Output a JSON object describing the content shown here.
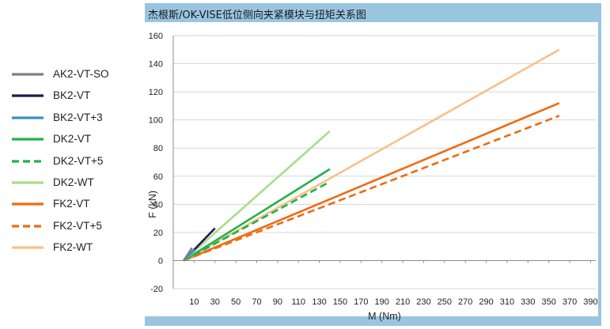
{
  "chart_data": {
    "type": "line",
    "title": "杰根斯/OK-VISE低位侧向夹紧模块与扭矩关系图",
    "xlabel": "M (Nm)",
    "ylabel": "F (kN)",
    "xlim": [
      -10,
      395
    ],
    "ylim": [
      -20,
      160
    ],
    "x_ticks": [
      10,
      30,
      50,
      70,
      90,
      110,
      130,
      150,
      170,
      190,
      210,
      230,
      250,
      270,
      290,
      310,
      330,
      350,
      370,
      390
    ],
    "y_ticks": [
      -20,
      0,
      20,
      40,
      60,
      80,
      100,
      120,
      140,
      160
    ],
    "grid": "horizontal",
    "legend_position": "left",
    "series": [
      {
        "name": "AK2-VT-SO",
        "color": "#7f7f7f",
        "dash": "solid",
        "points": [
          [
            0,
            0
          ],
          [
            8,
            9
          ]
        ]
      },
      {
        "name": "BK2-VT",
        "color": "#1f1a4d",
        "dash": "solid",
        "points": [
          [
            0,
            0
          ],
          [
            30,
            23
          ]
        ]
      },
      {
        "name": "BK2-VT+3",
        "color": "#3b8ec2",
        "dash": "solid",
        "points": [
          [
            0,
            0
          ],
          [
            10,
            8
          ]
        ]
      },
      {
        "name": "DK2-VT",
        "color": "#22b14c",
        "dash": "solid",
        "points": [
          [
            0,
            0
          ],
          [
            140,
            65
          ]
        ]
      },
      {
        "name": "DK2-VT+5",
        "color": "#22b14c",
        "dash": "dashed",
        "points": [
          [
            0,
            0
          ],
          [
            140,
            56
          ]
        ]
      },
      {
        "name": "DK2-WT",
        "color": "#a9dc8c",
        "dash": "solid",
        "points": [
          [
            0,
            0
          ],
          [
            140,
            92
          ]
        ]
      },
      {
        "name": "FK2-VT",
        "color": "#ee6b14",
        "dash": "solid",
        "points": [
          [
            0,
            0
          ],
          [
            360,
            112
          ]
        ]
      },
      {
        "name": "FK2-VT+5",
        "color": "#ee6b14",
        "dash": "dashed",
        "points": [
          [
            0,
            0
          ],
          [
            360,
            103
          ]
        ]
      },
      {
        "name": "FK2-WT",
        "color": "#f7c089",
        "dash": "solid",
        "points": [
          [
            0,
            0
          ],
          [
            360,
            150
          ]
        ]
      }
    ]
  }
}
